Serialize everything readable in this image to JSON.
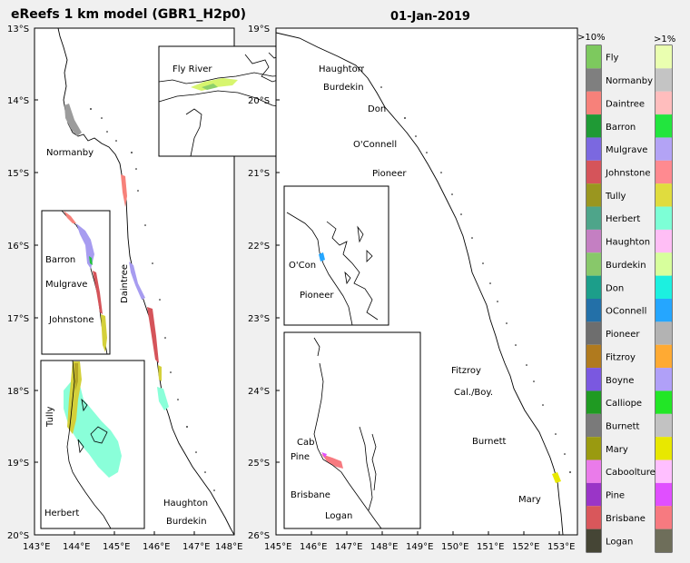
{
  "titles": {
    "left": "eReefs 1 km model (GBR1_H2p0)",
    "right": "01-Jan-2019"
  },
  "left_map": {
    "lat_ticks": [
      "13°S",
      "14°S",
      "15°S",
      "16°S",
      "17°S",
      "18°S",
      "19°S",
      "20°S"
    ],
    "lon_ticks": [
      "143°E",
      "144°E",
      "145°E",
      "146°E",
      "147°E",
      "148°E"
    ],
    "labels": {
      "normanby": "Normanby",
      "daintree": "Daintree",
      "haughton": "Haughton",
      "burdekin": "Burdekin"
    },
    "inset_fly": {
      "label": "Fly River"
    },
    "inset_barron": {
      "barron": "Barron",
      "mulgrave": "Mulgrave",
      "johnstone": "Johnstone"
    },
    "inset_tully": {
      "tully": "Tully",
      "herbert": "Herbert"
    }
  },
  "right_map": {
    "lat_ticks": [
      "19°S",
      "20°S",
      "21°S",
      "22°S",
      "23°S",
      "24°S",
      "25°S",
      "26°S"
    ],
    "lon_ticks": [
      "145°E",
      "146°E",
      "147°E",
      "148°E",
      "149°E",
      "150°E",
      "151°E",
      "152°E",
      "153°E"
    ],
    "labels": {
      "haughton": "Haughton",
      "burdekin": "Burdekin",
      "don": "Don",
      "oconnell": "O'Connell",
      "pioneer": "Pioneer",
      "fitzroy": "Fitzroy",
      "calboy": "Cal./Boy.",
      "burnett": "Burnett",
      "mary": "Mary"
    },
    "inset_mackay": {
      "ocon": "O'Con",
      "pioneer": "Pioneer"
    },
    "inset_brisbane": {
      "cab": "Cab",
      "pine": "Pine",
      "brisbane": "Brisbane",
      "logan": "Logan"
    }
  },
  "legend": {
    "header_left": ">10%",
    "header_right": ">1%",
    "rivers": [
      {
        "name": "Fly",
        "c1": "#7dc95e",
        "c2": "#eaffb0"
      },
      {
        "name": "Normanby",
        "c1": "#7f7f7f",
        "c2": "#c4c4c4"
      },
      {
        "name": "Daintree",
        "c1": "#f7817a",
        "c2": "#ffbdbd"
      },
      {
        "name": "Barron",
        "c1": "#1f9a35",
        "c2": "#22e53e"
      },
      {
        "name": "Mulgrave",
        "c1": "#7b68e0",
        "c2": "#b3a3f5"
      },
      {
        "name": "Johnstone",
        "c1": "#d5545a",
        "c2": "#ff8a90"
      },
      {
        "name": "Tully",
        "c1": "#9a961f",
        "c2": "#e0dc3e"
      },
      {
        "name": "Herbert",
        "c1": "#4ea58a",
        "c2": "#7dffd6"
      },
      {
        "name": "Haughton",
        "c1": "#c47fc2",
        "c2": "#ffbef5"
      },
      {
        "name": "Burdekin",
        "c1": "#88c86a",
        "c2": "#d7ff9c"
      },
      {
        "name": "Don",
        "c1": "#1c9e8a",
        "c2": "#1cf0e0"
      },
      {
        "name": "OConnell",
        "c1": "#2370a8",
        "c2": "#25a6ff"
      },
      {
        "name": "Pioneer",
        "c1": "#6e6e6e",
        "c2": "#b3b3b3"
      },
      {
        "name": "Fitzroy",
        "c1": "#b07a1e",
        "c2": "#ffaa33"
      },
      {
        "name": "Boyne",
        "c1": "#7a58e0",
        "c2": "#b0a0f8"
      },
      {
        "name": "Calliope",
        "c1": "#1f9a22",
        "c2": "#22e626"
      },
      {
        "name": "Burnett",
        "c1": "#7a7a7a",
        "c2": "#c2c2c2"
      },
      {
        "name": "Mary",
        "c1": "#9a9a10",
        "c2": "#e8e800"
      },
      {
        "name": "Caboolture",
        "c1": "#ea7bea",
        "c2": "#ffbfff"
      },
      {
        "name": "Pine",
        "c1": "#9a35c7",
        "c2": "#e04fff"
      },
      {
        "name": "Brisbane",
        "c1": "#d9575b",
        "c2": "#f77a80"
      },
      {
        "name": "Logan",
        "c1": "#454535",
        "c2": "#6e6e5a"
      }
    ]
  }
}
